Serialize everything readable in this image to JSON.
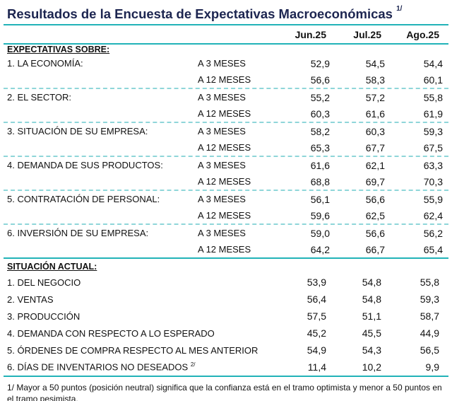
{
  "title": "Resultados de la Encuesta de Expectativas Macroeconómicas",
  "title_note": "1/",
  "columns": [
    "Jun.25",
    "Jul.25",
    "Ago.25"
  ],
  "expectativas": {
    "heading": "EXPECTATIVAS SOBRE:",
    "groups": [
      {
        "label": "1. LA ECONOMÍA:",
        "rows": [
          {
            "horizon": "A 3 MESES",
            "values": [
              "52,9",
              "54,5",
              "54,4"
            ]
          },
          {
            "horizon": "A 12 MESES",
            "values": [
              "56,6",
              "58,3",
              "60,1"
            ]
          }
        ]
      },
      {
        "label": "2. EL SECTOR:",
        "rows": [
          {
            "horizon": "A 3 MESES",
            "values": [
              "55,2",
              "57,2",
              "55,8"
            ]
          },
          {
            "horizon": "A 12 MESES",
            "values": [
              "60,3",
              "61,6",
              "61,9"
            ]
          }
        ]
      },
      {
        "label": "3. SITUACIÓN DE SU EMPRESA:",
        "rows": [
          {
            "horizon": "A 3 MESES",
            "values": [
              "58,2",
              "60,3",
              "59,3"
            ]
          },
          {
            "horizon": "A 12 MESES",
            "values": [
              "65,3",
              "67,7",
              "67,5"
            ]
          }
        ]
      },
      {
        "label": "4. DEMANDA DE SUS PRODUCTOS:",
        "rows": [
          {
            "horizon": "A 3 MESES",
            "values": [
              "61,6",
              "62,1",
              "63,3"
            ]
          },
          {
            "horizon": "A 12 MESES",
            "values": [
              "68,8",
              "69,7",
              "70,3"
            ]
          }
        ]
      },
      {
        "label": "5. CONTRATACIÓN DE PERSONAL:",
        "rows": [
          {
            "horizon": "A 3 MESES",
            "values": [
              "56,1",
              "56,6",
              "55,9"
            ]
          },
          {
            "horizon": "A 12 MESES",
            "values": [
              "59,6",
              "62,5",
              "62,4"
            ]
          }
        ]
      },
      {
        "label": "6. INVERSIÓN DE SU EMPRESA:",
        "rows": [
          {
            "horizon": "A 3 MESES",
            "values": [
              "59,0",
              "56,6",
              "56,2"
            ]
          },
          {
            "horizon": "A 12 MESES",
            "values": [
              "64,2",
              "66,7",
              "65,4"
            ]
          }
        ]
      }
    ]
  },
  "situacion": {
    "heading": "SITUACIÓN ACTUAL:",
    "rows": [
      {
        "label": "1. DEL NEGOCIO",
        "values": [
          "53,9",
          "54,8",
          "55,8"
        ]
      },
      {
        "label": "2. VENTAS",
        "values": [
          "56,4",
          "54,8",
          "59,3"
        ]
      },
      {
        "label": "3. PRODUCCIÓN",
        "values": [
          "57,5",
          "51,1",
          "58,7"
        ]
      },
      {
        "label": "4. DEMANDA CON RESPECTO A LO ESPERADO",
        "values": [
          "45,2",
          "45,5",
          "44,9"
        ]
      },
      {
        "label": "5. ÓRDENES DE COMPRA RESPECTO AL MES ANTERIOR",
        "values": [
          "54,9",
          "54,3",
          "56,5"
        ]
      },
      {
        "label": "6. DÍAS DE INVENTARIOS NO DESEADOS",
        "note": "2/",
        "values": [
          "11,4",
          "10,2",
          "9,9"
        ]
      }
    ]
  },
  "footnote": "1/ Mayor a 50 puntos (posición neutral) significa que la confianza está en el tramo optimista y menor a 50 puntos en el tramo pesimista.",
  "colors": {
    "accent": "#22b3b8",
    "title": "#1c2550"
  }
}
